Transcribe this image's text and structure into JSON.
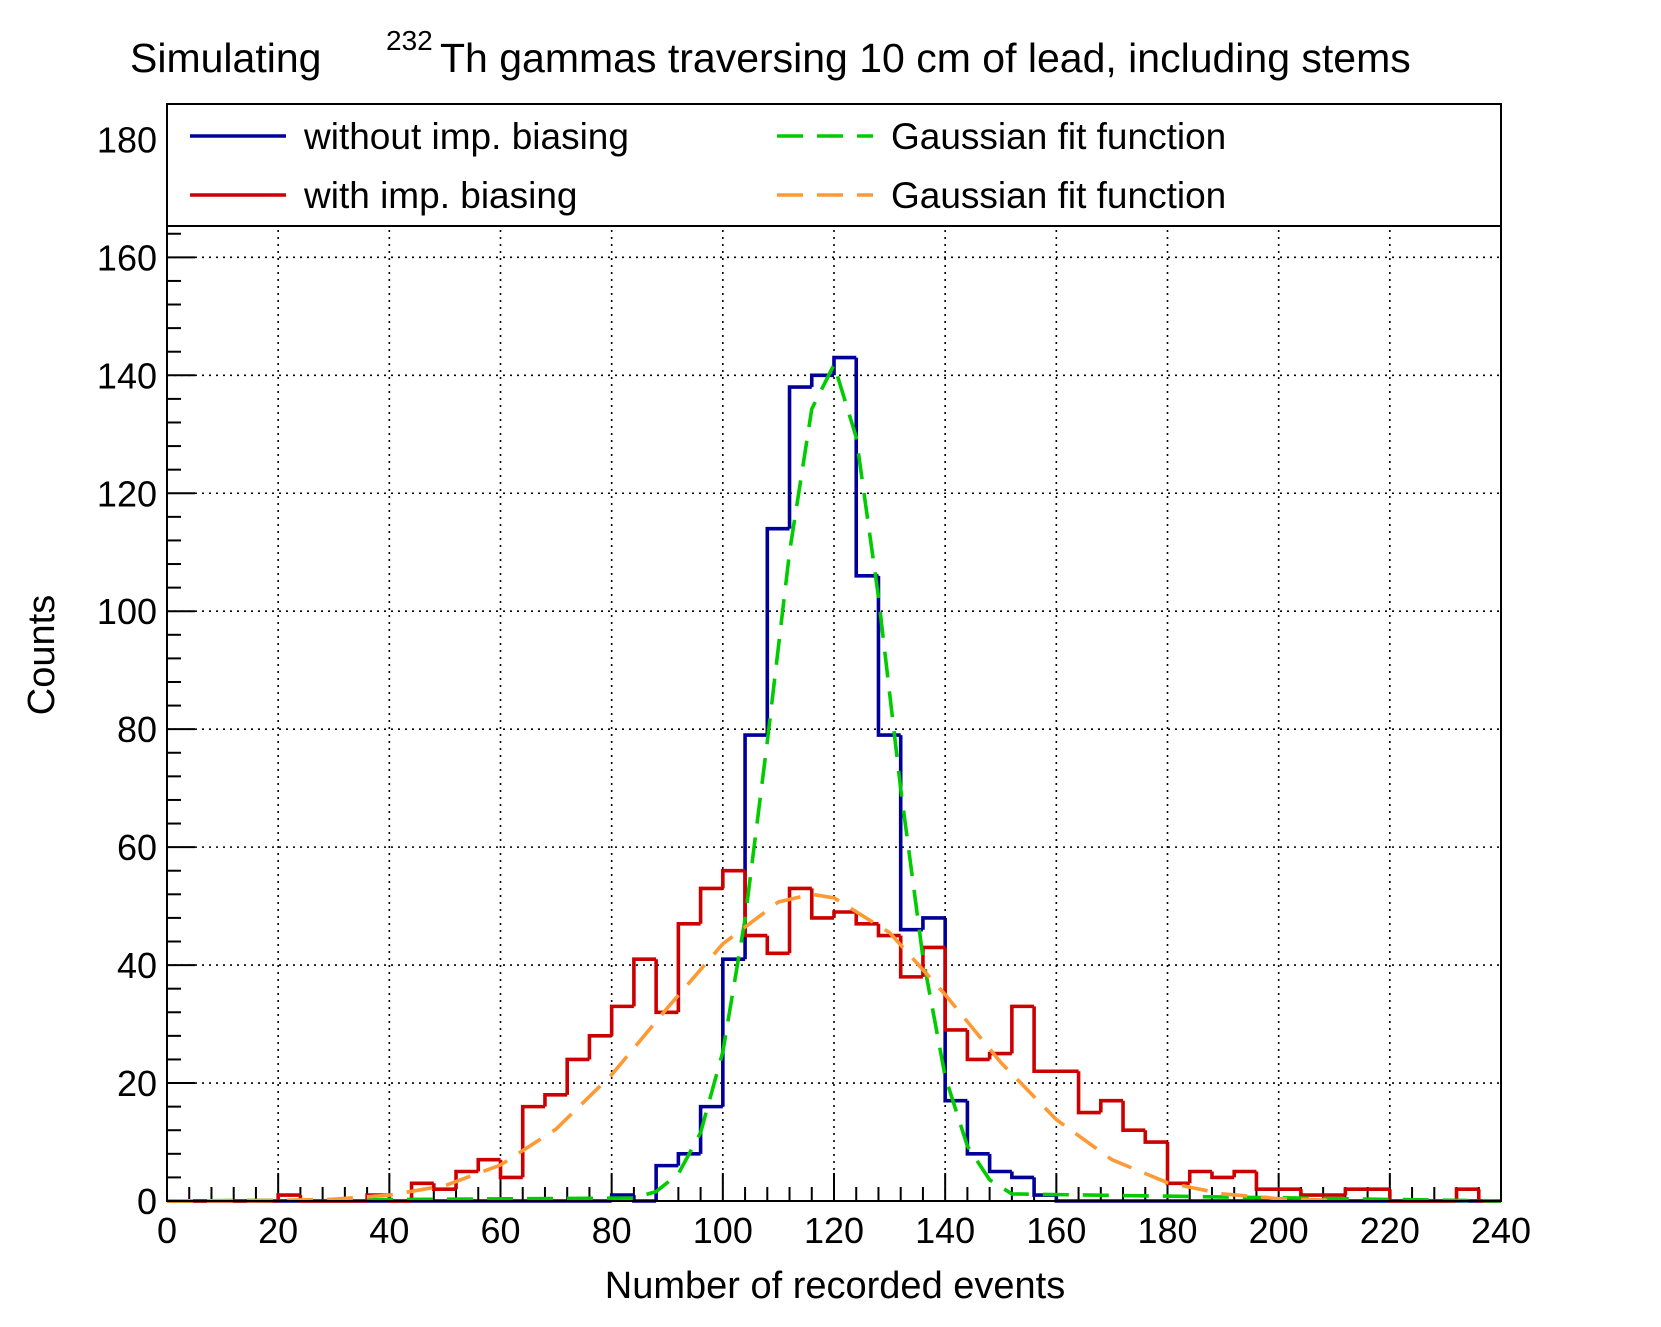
{
  "chart_data": {
    "type": "histogram",
    "title": {
      "prefix": "Simulating",
      "superscript": "232",
      "suffix": "Th gammas traversing 10 cm of lead, including stems"
    },
    "x_label": "Number of recorded events",
    "y_label": "Counts",
    "bins": [
      0,
      4,
      8,
      12,
      16,
      20,
      24,
      28,
      32,
      36,
      40,
      44,
      48,
      52,
      56,
      60,
      64,
      68,
      72,
      76,
      80,
      84,
      88,
      92,
      96,
      100,
      104,
      108,
      112,
      116,
      120,
      124,
      128,
      132,
      136,
      140,
      144,
      148,
      152,
      156,
      160,
      164,
      168,
      172,
      176,
      180,
      184,
      188,
      192,
      196,
      200,
      204,
      208,
      212,
      216,
      220,
      224,
      228,
      232,
      236,
      240
    ],
    "series": [
      {
        "name": "without imp. biasing",
        "color": "#000099",
        "values": [
          0,
          0,
          0,
          0,
          0,
          0,
          0,
          0,
          0,
          0,
          0,
          0,
          0,
          0,
          0,
          0,
          0,
          0,
          0,
          0,
          1,
          0,
          6,
          8,
          16,
          41,
          79,
          114,
          138,
          140,
          143,
          106,
          79,
          46,
          48,
          17,
          8,
          5,
          4,
          1,
          0,
          0,
          0,
          0,
          0,
          0,
          0,
          0,
          0,
          0,
          0,
          0,
          0,
          0,
          0,
          0,
          0,
          0,
          0,
          0
        ]
      },
      {
        "name": "with imp. biasing",
        "color": "#cc0000",
        "values": [
          0,
          0,
          0,
          0,
          0,
          1,
          0,
          0,
          0,
          1,
          0,
          3,
          2,
          5,
          7,
          4,
          16,
          18,
          24,
          28,
          33,
          41,
          32,
          47,
          53,
          56,
          45,
          42,
          53,
          48,
          49,
          47,
          45,
          38,
          43,
          29,
          24,
          25,
          33,
          22,
          22,
          15,
          17,
          12,
          10,
          3,
          5,
          4,
          5,
          2,
          2,
          1,
          1,
          2,
          2,
          0,
          0,
          0,
          2,
          0
        ]
      }
    ],
    "fits": [
      {
        "name": "Gaussian fit function",
        "color": "#00cc00",
        "dash": true,
        "x": [
          0,
          84,
          88,
          92,
          96,
          100,
          104,
          108,
          112,
          116,
          120,
          124,
          128,
          132,
          136,
          140,
          144,
          148,
          152,
          240
        ],
        "values": [
          0,
          0.5,
          1.6,
          4.6,
          11.6,
          25.3,
          47.8,
          77.9,
          110,
          134.3,
          141.8,
          129.5,
          102.4,
          69.9,
          41.3,
          21.1,
          9.3,
          3.6,
          1.2,
          0
        ]
      },
      {
        "name": "Gaussian fit function",
        "color": "#ff9933",
        "dash": true,
        "x": [
          0,
          20,
          30,
          40,
          50,
          60,
          70,
          80,
          90,
          100,
          110,
          116,
          120,
          130,
          140,
          150,
          160,
          170,
          180,
          190,
          200,
          210
        ],
        "values": [
          0,
          0.1,
          0.3,
          1,
          2.6,
          6.1,
          12.2,
          21.4,
          32.7,
          43.6,
          50.7,
          52,
          51.4,
          45.5,
          35,
          23.5,
          13.8,
          7,
          3.1,
          1.2,
          0.4,
          0.1
        ]
      }
    ],
    "xlim": [
      0,
      240
    ],
    "ylim": [
      0,
      186
    ],
    "xticks": [
      0,
      20,
      40,
      60,
      80,
      100,
      120,
      140,
      160,
      180,
      200,
      220,
      240
    ],
    "yticks": [
      0,
      20,
      40,
      60,
      80,
      100,
      120,
      140,
      160,
      180
    ],
    "grid": true
  }
}
